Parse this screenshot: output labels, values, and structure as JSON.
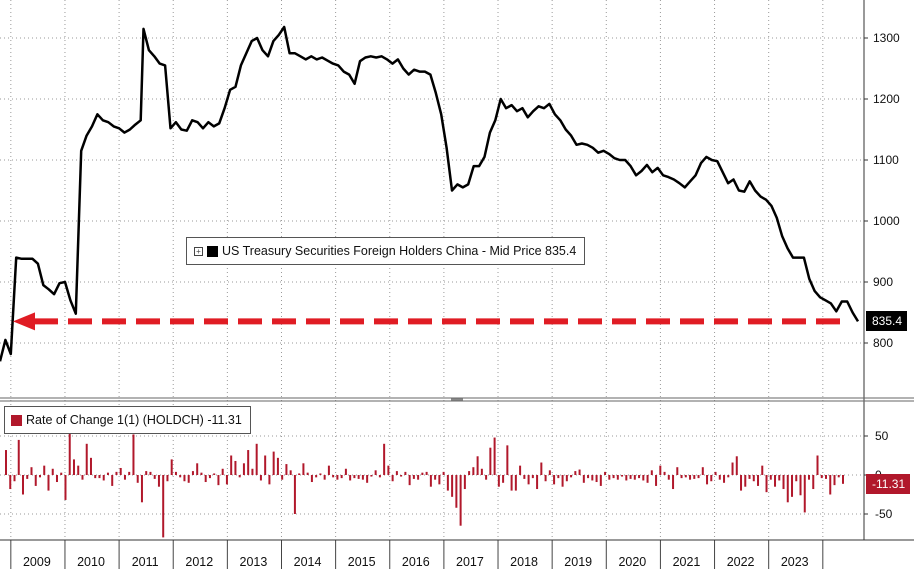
{
  "colors": {
    "price_line": "#000000",
    "arrow": "#e01c24",
    "roc_bar": "#b1182b",
    "price_tag_bg": "#000000",
    "roc_tag_bg": "#b1182b",
    "grid": "#9a9a9a"
  },
  "legend_main": {
    "icon": "plus-box-icon",
    "label": "US Treasury Securities Foreign Holders China - Mid Price 835.4"
  },
  "legend_roc": {
    "label": "Rate of Change 1(1) (HOLDCH) -11.31"
  },
  "price_tag": "835.4",
  "roc_tag": "-11.31",
  "chart_data": [
    {
      "type": "line",
      "series_name": "US Treasury Securities Foreign Holders China - Mid Price",
      "x_tick_labels": [
        "2009",
        "2010",
        "2011",
        "2012",
        "2013",
        "2014",
        "2015",
        "2016",
        "2017",
        "2018",
        "2019",
        "2020",
        "2021",
        "2022",
        "2023"
      ],
      "y_tick_labels": [
        "800",
        "900",
        "1000",
        "1100",
        "1200",
        "1300"
      ],
      "ylim": [
        710,
        1360
      ],
      "grid": true,
      "legend_position": "center",
      "last_value": 835.4,
      "points": [
        [
          2008.5,
          770
        ],
        [
          2008.6,
          805
        ],
        [
          2008.7,
          782
        ],
        [
          2008.8,
          940
        ],
        [
          2008.9,
          938
        ],
        [
          2009.0,
          938
        ],
        [
          2009.1,
          938
        ],
        [
          2009.2,
          930
        ],
        [
          2009.3,
          895
        ],
        [
          2009.4,
          888
        ],
        [
          2009.5,
          880
        ],
        [
          2009.6,
          898
        ],
        [
          2009.7,
          900
        ],
        [
          2009.8,
          870
        ],
        [
          2009.9,
          848
        ],
        [
          2010.0,
          1115
        ],
        [
          2010.1,
          1140
        ],
        [
          2010.2,
          1155
        ],
        [
          2010.3,
          1175
        ],
        [
          2010.4,
          1165
        ],
        [
          2010.5,
          1162
        ],
        [
          2010.6,
          1155
        ],
        [
          2010.7,
          1152
        ],
        [
          2010.8,
          1145
        ],
        [
          2010.9,
          1150
        ],
        [
          2011.0,
          1158
        ],
        [
          2011.1,
          1165
        ],
        [
          2011.15,
          1315
        ],
        [
          2011.25,
          1280
        ],
        [
          2011.35,
          1270
        ],
        [
          2011.45,
          1258
        ],
        [
          2011.55,
          1255
        ],
        [
          2011.65,
          1152
        ],
        [
          2011.75,
          1162
        ],
        [
          2011.85,
          1150
        ],
        [
          2011.95,
          1148
        ],
        [
          2012.05,
          1165
        ],
        [
          2012.15,
          1162
        ],
        [
          2012.25,
          1152
        ],
        [
          2012.35,
          1162
        ],
        [
          2012.45,
          1155
        ],
        [
          2012.55,
          1160
        ],
        [
          2012.65,
          1185
        ],
        [
          2012.75,
          1215
        ],
        [
          2012.85,
          1220
        ],
        [
          2012.95,
          1255
        ],
        [
          2013.05,
          1275
        ],
        [
          2013.15,
          1295
        ],
        [
          2013.25,
          1300
        ],
        [
          2013.35,
          1280
        ],
        [
          2013.45,
          1270
        ],
        [
          2013.55,
          1295
        ],
        [
          2013.65,
          1305
        ],
        [
          2013.75,
          1318
        ],
        [
          2013.85,
          1275
        ],
        [
          2013.95,
          1275
        ],
        [
          2014.05,
          1270
        ],
        [
          2014.15,
          1265
        ],
        [
          2014.25,
          1270
        ],
        [
          2014.35,
          1265
        ],
        [
          2014.45,
          1268
        ],
        [
          2014.55,
          1263
        ],
        [
          2014.65,
          1258
        ],
        [
          2014.75,
          1255
        ],
        [
          2014.85,
          1245
        ],
        [
          2014.95,
          1240
        ],
        [
          2015.05,
          1225
        ],
        [
          2015.15,
          1262
        ],
        [
          2015.25,
          1268
        ],
        [
          2015.35,
          1270
        ],
        [
          2015.45,
          1268
        ],
        [
          2015.55,
          1270
        ],
        [
          2015.65,
          1265
        ],
        [
          2015.75,
          1258
        ],
        [
          2015.85,
          1265
        ],
        [
          2015.95,
          1250
        ],
        [
          2016.05,
          1240
        ],
        [
          2016.15,
          1248
        ],
        [
          2016.25,
          1245
        ],
        [
          2016.35,
          1245
        ],
        [
          2016.45,
          1240
        ],
        [
          2016.55,
          1210
        ],
        [
          2016.65,
          1175
        ],
        [
          2016.75,
          1120
        ],
        [
          2016.85,
          1050
        ],
        [
          2016.95,
          1060
        ],
        [
          2017.05,
          1055
        ],
        [
          2017.15,
          1060
        ],
        [
          2017.25,
          1090
        ],
        [
          2017.35,
          1090
        ],
        [
          2017.45,
          1105
        ],
        [
          2017.55,
          1145
        ],
        [
          2017.65,
          1165
        ],
        [
          2017.75,
          1200
        ],
        [
          2017.85,
          1185
        ],
        [
          2017.95,
          1190
        ],
        [
          2018.05,
          1180
        ],
        [
          2018.15,
          1185
        ],
        [
          2018.25,
          1170
        ],
        [
          2018.35,
          1180
        ],
        [
          2018.45,
          1188
        ],
        [
          2018.55,
          1185
        ],
        [
          2018.65,
          1192
        ],
        [
          2018.75,
          1175
        ],
        [
          2018.85,
          1165
        ],
        [
          2018.95,
          1150
        ],
        [
          2019.05,
          1140
        ],
        [
          2019.15,
          1125
        ],
        [
          2019.25,
          1127
        ],
        [
          2019.35,
          1125
        ],
        [
          2019.45,
          1120
        ],
        [
          2019.55,
          1112
        ],
        [
          2019.65,
          1115
        ],
        [
          2019.75,
          1110
        ],
        [
          2019.85,
          1103
        ],
        [
          2019.95,
          1100
        ],
        [
          2020.05,
          1100
        ],
        [
          2020.15,
          1090
        ],
        [
          2020.25,
          1075
        ],
        [
          2020.35,
          1082
        ],
        [
          2020.45,
          1092
        ],
        [
          2020.55,
          1080
        ],
        [
          2020.65,
          1087
        ],
        [
          2020.75,
          1075
        ],
        [
          2020.85,
          1072
        ],
        [
          2020.95,
          1068
        ],
        [
          2021.05,
          1062
        ],
        [
          2021.15,
          1055
        ],
        [
          2021.25,
          1065
        ],
        [
          2021.35,
          1075
        ],
        [
          2021.45,
          1095
        ],
        [
          2021.55,
          1105
        ],
        [
          2021.65,
          1100
        ],
        [
          2021.75,
          1098
        ],
        [
          2021.85,
          1080
        ],
        [
          2021.95,
          1062
        ],
        [
          2022.05,
          1068
        ],
        [
          2022.15,
          1050
        ],
        [
          2022.25,
          1048
        ],
        [
          2022.35,
          1065
        ],
        [
          2022.45,
          1050
        ],
        [
          2022.55,
          1040
        ],
        [
          2022.65,
          1035
        ],
        [
          2022.75,
          1025
        ],
        [
          2022.85,
          1005
        ],
        [
          2022.95,
          975
        ],
        [
          2023.05,
          955
        ],
        [
          2023.15,
          940
        ],
        [
          2023.25,
          940
        ],
        [
          2023.35,
          940
        ],
        [
          2023.45,
          905
        ],
        [
          2023.55,
          885
        ],
        [
          2023.65,
          875
        ],
        [
          2023.75,
          870
        ],
        [
          2023.85,
          865
        ],
        [
          2023.95,
          852
        ],
        [
          2024.05,
          868
        ],
        [
          2024.15,
          868
        ],
        [
          2024.25,
          850
        ],
        [
          2024.35,
          835.4
        ]
      ]
    },
    {
      "type": "bar",
      "series_name": "Rate of Change 1(1) (HOLDCH)",
      "y_tick_labels": [
        "50",
        "0",
        "-50"
      ],
      "ylim": [
        -80,
        90
      ],
      "grid": true,
      "last_value": -11.31,
      "values": [
        32,
        -18,
        -8,
        45,
        -25,
        -5,
        10,
        -14,
        -3,
        12,
        -20,
        8,
        -9,
        3,
        -32,
        60,
        20,
        12,
        -6,
        40,
        22,
        -4,
        -4,
        -7,
        3,
        -14,
        4,
        9,
        -6,
        4,
        52,
        -10,
        -35,
        5,
        4,
        -5,
        -15,
        -80,
        -8,
        20,
        4,
        -3,
        -8,
        -10,
        5,
        15,
        3,
        -9,
        -4,
        2,
        -13,
        8,
        -12,
        25,
        18,
        -3,
        15,
        32,
        8,
        40,
        -7,
        25,
        -12,
        30,
        22,
        -6,
        14,
        6,
        -50,
        2,
        15,
        3,
        -9,
        -3,
        2,
        -6,
        12,
        -3,
        -6,
        -4,
        8,
        -7,
        -4,
        -5,
        -6,
        -10,
        -2,
        6,
        -3,
        40,
        12,
        -8,
        5,
        -2,
        4,
        -13,
        -5,
        -6,
        3,
        4,
        -15,
        -6,
        -12,
        4,
        -20,
        -28,
        -42,
        -65,
        -18,
        5,
        10,
        24,
        8,
        -6,
        35,
        48,
        -15,
        -10,
        38,
        -20,
        -20,
        12,
        -5,
        -12,
        -4,
        -18,
        16,
        -8,
        6,
        -12,
        -4,
        -15,
        -8,
        -3,
        5,
        7,
        -10,
        -4,
        -7,
        -9,
        -14,
        4,
        -6,
        -4,
        -6,
        -2,
        -7,
        -5,
        -6,
        -4,
        -7,
        -10,
        6,
        -14,
        12,
        4,
        -6,
        -18,
        10,
        -4,
        -3,
        -6,
        -5,
        -4,
        10,
        -12,
        -8,
        4,
        -6,
        -10,
        -3,
        16,
        24,
        -20,
        -15,
        -5,
        -8,
        -14,
        12,
        -22,
        -6,
        -15,
        -7,
        -18,
        -35,
        -28,
        -8,
        -26,
        -48,
        -6,
        -18,
        25,
        -4,
        -5,
        -25,
        -13,
        -3,
        -11.31
      ]
    }
  ]
}
